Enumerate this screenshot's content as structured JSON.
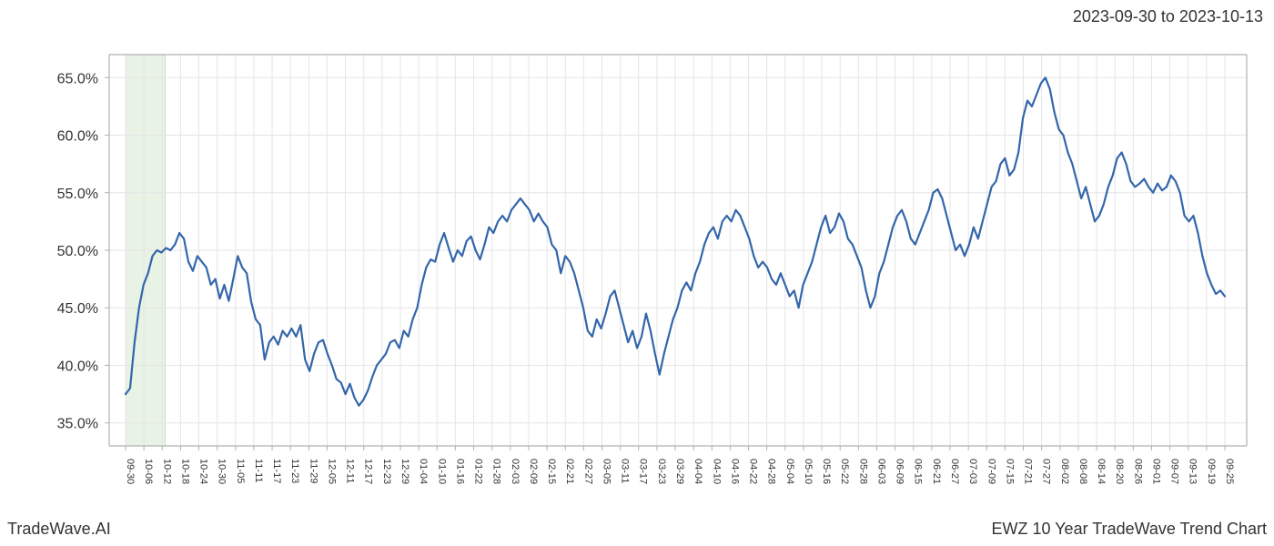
{
  "header": {
    "date_range": "2023-09-30 to 2023-10-13"
  },
  "footer": {
    "left": "TradeWave.AI",
    "right": "EWZ 10 Year TradeWave Trend Chart"
  },
  "chart": {
    "type": "line",
    "background_color": "#ffffff",
    "grid_color": "#e5e5e5",
    "border_color": "#b0b0b0",
    "line_color": "#3366aa",
    "line_width": 2.2,
    "highlight_band": {
      "start_label": "09-30",
      "end_label": "10-13",
      "fill_color": "#d9ead3",
      "opacity": 0.6
    },
    "ylim": [
      33.0,
      67.0
    ],
    "yticks": [
      35.0,
      40.0,
      45.0,
      50.0,
      55.0,
      60.0,
      65.0
    ],
    "ytick_labels": [
      "35.0%",
      "40.0%",
      "45.0%",
      "50.0%",
      "55.0%",
      "60.0%",
      "65.0%"
    ],
    "ytick_fontsize": 16,
    "xtick_fontsize": 11,
    "xtick_rotation": 90,
    "tick_color": "#333333",
    "xticks": [
      "09-30",
      "10-06",
      "10-12",
      "10-18",
      "10-24",
      "10-30",
      "11-05",
      "11-11",
      "11-17",
      "11-23",
      "11-29",
      "12-05",
      "12-11",
      "12-17",
      "12-23",
      "12-29",
      "01-04",
      "01-10",
      "01-16",
      "01-22",
      "01-28",
      "02-03",
      "02-09",
      "02-15",
      "02-21",
      "02-27",
      "03-05",
      "03-11",
      "03-17",
      "03-23",
      "03-29",
      "04-04",
      "04-10",
      "04-16",
      "04-22",
      "04-28",
      "05-04",
      "05-10",
      "05-16",
      "05-22",
      "05-28",
      "06-03",
      "06-09",
      "06-15",
      "06-21",
      "06-27",
      "07-03",
      "07-09",
      "07-15",
      "07-21",
      "07-27",
      "08-02",
      "08-08",
      "08-14",
      "08-20",
      "08-26",
      "09-01",
      "09-07",
      "09-13",
      "09-19",
      "09-25"
    ],
    "series": {
      "values": [
        37.5,
        38.0,
        42.0,
        45.0,
        47.0,
        48.0,
        49.5,
        50.0,
        49.8,
        50.2,
        50.0,
        50.5,
        51.5,
        51.0,
        49.0,
        48.2,
        49.5,
        49.0,
        48.5,
        47.0,
        47.5,
        45.8,
        47.0,
        45.6,
        47.5,
        49.5,
        48.5,
        48.0,
        45.5,
        44.0,
        43.5,
        40.5,
        42.0,
        42.5,
        41.8,
        43.0,
        42.5,
        43.2,
        42.5,
        43.5,
        40.5,
        39.5,
        41.0,
        42.0,
        42.2,
        41.0,
        40.0,
        38.8,
        38.5,
        37.5,
        38.4,
        37.2,
        36.5,
        37.0,
        37.8,
        39.0,
        40.0,
        40.5,
        41.0,
        42.0,
        42.2,
        41.5,
        43.0,
        42.5,
        44.0,
        45.0,
        47.0,
        48.5,
        49.2,
        49.0,
        50.5,
        51.5,
        50.2,
        49.0,
        50.0,
        49.5,
        50.8,
        51.2,
        50.0,
        49.2,
        50.5,
        52.0,
        51.5,
        52.5,
        53.0,
        52.5,
        53.5,
        54.0,
        54.5,
        54.0,
        53.5,
        52.5,
        53.2,
        52.5,
        52.0,
        50.5,
        50.0,
        48.0,
        49.5,
        49.0,
        48.0,
        46.5,
        45.0,
        43.0,
        42.5,
        44.0,
        43.2,
        44.5,
        46.0,
        46.5,
        45.0,
        43.5,
        42.0,
        43.0,
        41.5,
        42.5,
        44.5,
        43.0,
        41.0,
        39.2,
        41.0,
        42.5,
        44.0,
        45.0,
        46.5,
        47.2,
        46.5,
        48.0,
        49.0,
        50.5,
        51.5,
        52.0,
        51.0,
        52.5,
        53.0,
        52.5,
        53.5,
        53.0,
        52.0,
        51.0,
        49.5,
        48.5,
        49.0,
        48.5,
        47.5,
        47.0,
        48.0,
        47.0,
        46.0,
        46.5,
        45.0,
        47.0,
        48.0,
        49.0,
        50.5,
        52.0,
        53.0,
        51.5,
        52.0,
        53.2,
        52.5,
        51.0,
        50.5,
        49.5,
        48.5,
        46.5,
        45.0,
        46.0,
        48.0,
        49.0,
        50.5,
        52.0,
        53.0,
        53.5,
        52.5,
        51.0,
        50.5,
        51.5,
        52.5,
        53.5,
        55.0,
        55.3,
        54.5,
        53.0,
        51.5,
        50.0,
        50.5,
        49.5,
        50.5,
        52.0,
        51.0,
        52.5,
        54.0,
        55.5,
        56.0,
        57.5,
        58.0,
        56.5,
        57.0,
        58.5,
        61.5,
        63.0,
        62.5,
        63.5,
        64.5,
        65.0,
        64.0,
        62.0,
        60.5,
        60.0,
        58.5,
        57.5,
        56.0,
        54.5,
        55.5,
        54.0,
        52.5,
        53.0,
        54.0,
        55.5,
        56.5,
        58.0,
        58.5,
        57.5,
        56.0,
        55.5,
        55.8,
        56.2,
        55.5,
        55.0,
        55.8,
        55.2,
        55.5,
        56.5,
        56.0,
        55.0,
        53.0,
        52.5,
        53.0,
        51.5,
        49.5,
        48.0,
        47.0,
        46.2,
        46.5,
        46.0
      ]
    }
  }
}
